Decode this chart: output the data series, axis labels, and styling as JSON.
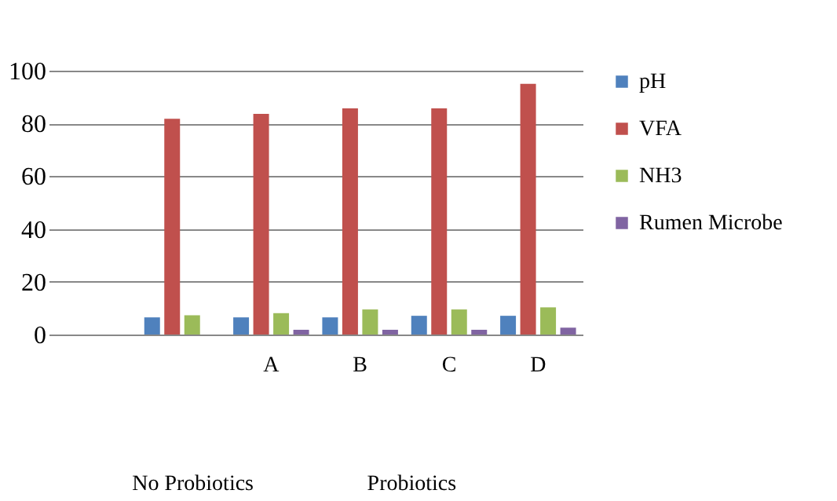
{
  "chart_data": {
    "type": "bar",
    "categories": [
      null,
      null,
      "A",
      "B",
      "C",
      "D"
    ],
    "series": [
      {
        "name": "pH",
        "color": "#4f81bd",
        "values": [
          null,
          6.5,
          6.5,
          6.5,
          7.1,
          7.1
        ]
      },
      {
        "name": "VFA",
        "color": "#c0504d",
        "values": [
          null,
          81.8,
          83.6,
          85.7,
          85.7,
          95
        ]
      },
      {
        "name": "NH3",
        "color": "#9bbb59",
        "values": [
          null,
          7.3,
          8.1,
          9.5,
          9.5,
          10.3
        ]
      },
      {
        "name": "Rumen Microbe",
        "color": "#8064a2",
        "values": [
          null,
          null,
          1.8,
          1.8,
          1.8,
          2.6
        ]
      }
    ],
    "ylim": [
      0,
      100
    ],
    "yticks": [
      0,
      20,
      40,
      60,
      80,
      100
    ],
    "grid": "y",
    "legend": "right",
    "annotations": [
      "No Probiotics",
      "Probiotics"
    ]
  }
}
